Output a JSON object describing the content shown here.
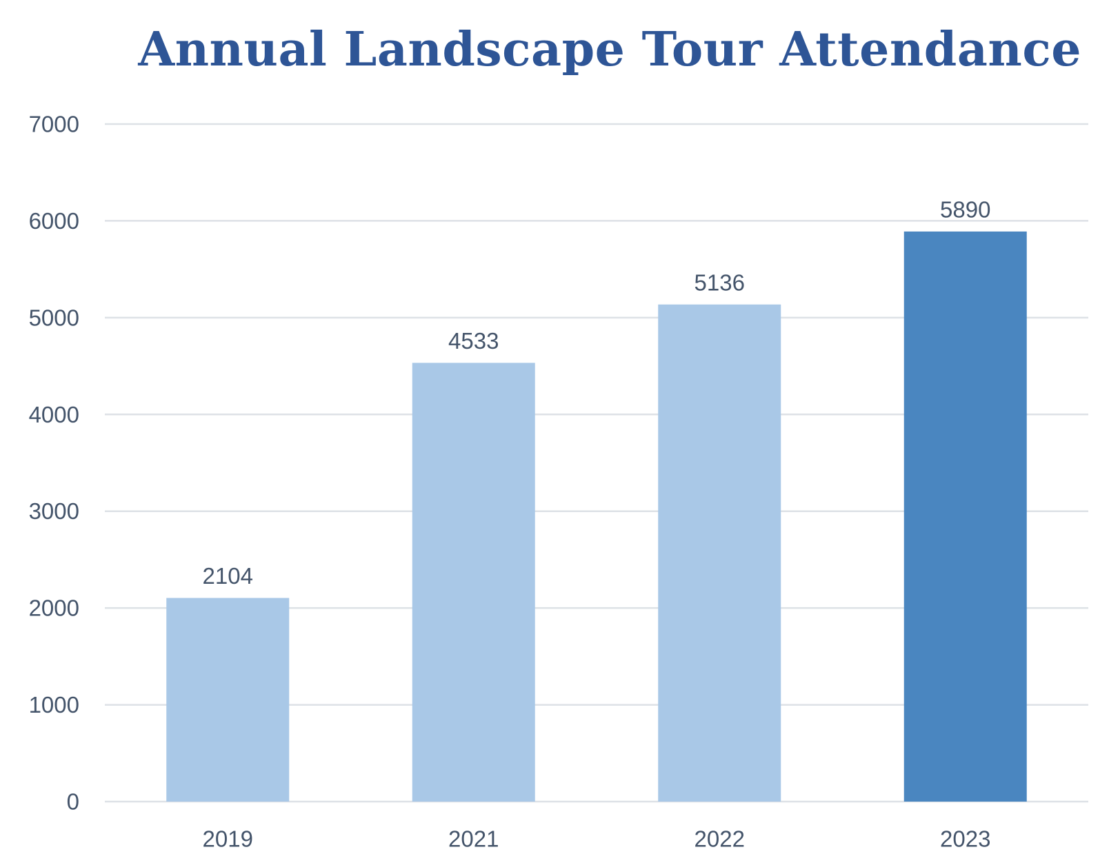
{
  "chart_data": {
    "type": "bar",
    "title": "Annual Landscape Tour Attendance",
    "categories": [
      "2019",
      "2021",
      "2022",
      "2023"
    ],
    "values": [
      2104,
      4533,
      5136,
      5890
    ],
    "value_labels": [
      "2104",
      "4533",
      "5136",
      "5890"
    ],
    "xlabel": "",
    "ylabel": "",
    "ylim": [
      0,
      7000
    ],
    "yticks": [
      0,
      1000,
      2000,
      3000,
      4000,
      5000,
      6000,
      7000
    ],
    "ytick_labels": [
      "0",
      "1000",
      "2000",
      "3000",
      "4000",
      "5000",
      "6000",
      "7000"
    ],
    "grid": true,
    "legend": "none",
    "bar_colors": [
      "#a9c8e7",
      "#a9c8e7",
      "#a9c8e7",
      "#4a86c0"
    ],
    "gridline_color": "#dde1e6",
    "text_color": "#44546a",
    "title_color": "#2e5596"
  }
}
